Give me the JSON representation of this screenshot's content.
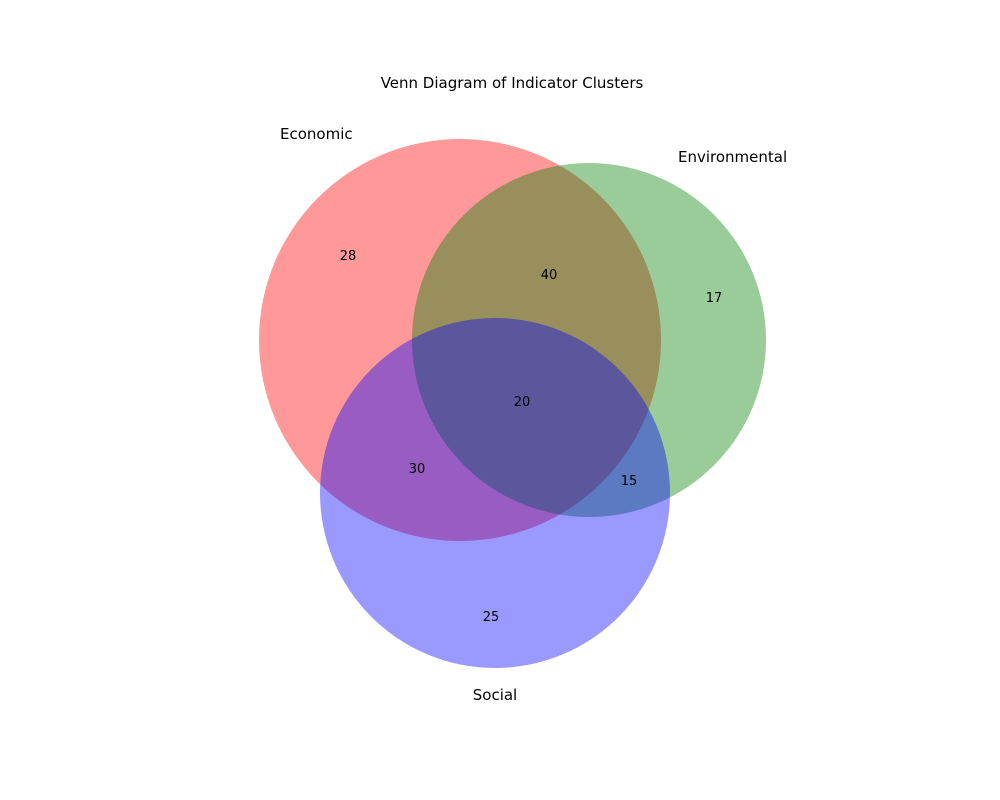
{
  "title": "Venn Diagram of Indicator Clusters",
  "sets": [
    {
      "name": "Economic",
      "color": "#ff0000",
      "alpha": 0.4
    },
    {
      "name": "Environmental",
      "color": "#008000",
      "alpha": 0.4
    },
    {
      "name": "Social",
      "color": "#0000ff",
      "alpha": 0.4
    }
  ],
  "regions": {
    "economic_only": "28",
    "environmental_only": "17",
    "social_only": "25",
    "economic_environmental": "40",
    "economic_social": "30",
    "environmental_social": "15",
    "all_three": "20"
  }
}
